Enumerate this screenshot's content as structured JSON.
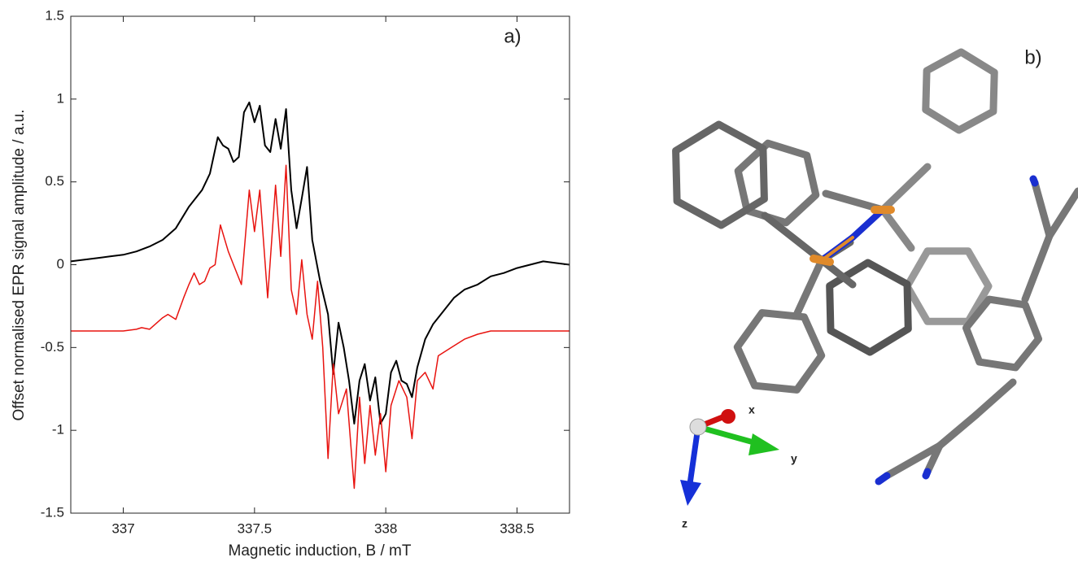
{
  "chart_data": {
    "type": "line",
    "ylabel": "Offset normalised EPR signal amplitude / a.u.",
    "xlabel": "Magnetic induction, B / mT",
    "annotation": "a)",
    "xlim": [
      336.8,
      338.7
    ],
    "xticks": [
      337,
      337.5,
      338,
      338.5
    ],
    "ylim": [
      -1.5,
      1.5
    ],
    "yticks": [
      -1.5,
      -1,
      -0.5,
      0,
      0.5,
      1,
      1.5
    ],
    "series": [
      {
        "color": "#000000",
        "x": [
          336.8,
          336.85,
          336.9,
          336.95,
          337.0,
          337.05,
          337.1,
          337.15,
          337.2,
          337.25,
          337.3,
          337.33,
          337.36,
          337.38,
          337.4,
          337.42,
          337.44,
          337.46,
          337.48,
          337.5,
          337.52,
          337.54,
          337.56,
          337.58,
          337.6,
          337.62,
          337.64,
          337.66,
          337.68,
          337.7,
          337.72,
          337.75,
          337.78,
          337.8,
          337.82,
          337.84,
          337.86,
          337.88,
          337.9,
          337.92,
          337.94,
          337.96,
          337.98,
          338.0,
          338.02,
          338.04,
          338.06,
          338.08,
          338.1,
          338.12,
          338.15,
          338.18,
          338.22,
          338.26,
          338.3,
          338.35,
          338.4,
          338.45,
          338.5,
          338.55,
          338.6,
          338.65,
          338.7
        ],
        "values": [
          0.02,
          0.03,
          0.04,
          0.05,
          0.06,
          0.08,
          0.11,
          0.15,
          0.22,
          0.35,
          0.45,
          0.55,
          0.77,
          0.72,
          0.7,
          0.62,
          0.65,
          0.92,
          0.98,
          0.86,
          0.96,
          0.72,
          0.68,
          0.88,
          0.7,
          0.94,
          0.45,
          0.22,
          0.4,
          0.59,
          0.15,
          -0.1,
          -0.3,
          -0.66,
          -0.35,
          -0.5,
          -0.7,
          -0.96,
          -0.7,
          -0.6,
          -0.82,
          -0.68,
          -0.96,
          -0.9,
          -0.65,
          -0.58,
          -0.7,
          -0.72,
          -0.8,
          -0.62,
          -0.45,
          -0.36,
          -0.28,
          -0.2,
          -0.15,
          -0.12,
          -0.07,
          -0.05,
          -0.02,
          0.0,
          0.02,
          0.01,
          0.0
        ]
      },
      {
        "color": "#e8130f",
        "x": [
          336.8,
          337.0,
          337.05,
          337.07,
          337.1,
          337.15,
          337.17,
          337.2,
          337.23,
          337.25,
          337.27,
          337.29,
          337.31,
          337.33,
          337.35,
          337.37,
          337.4,
          337.42,
          337.45,
          337.48,
          337.5,
          337.52,
          337.55,
          337.58,
          337.6,
          337.62,
          337.64,
          337.66,
          337.68,
          337.7,
          337.72,
          337.74,
          337.76,
          337.78,
          337.8,
          337.82,
          337.85,
          337.88,
          337.9,
          337.92,
          337.94,
          337.96,
          337.98,
          338.0,
          338.02,
          338.05,
          338.08,
          338.1,
          338.12,
          338.15,
          338.18,
          338.2,
          338.25,
          338.3,
          338.35,
          338.4,
          338.7
        ],
        "values": [
          -0.4,
          -0.4,
          -0.39,
          -0.38,
          -0.39,
          -0.32,
          -0.3,
          -0.33,
          -0.2,
          -0.12,
          -0.05,
          -0.12,
          -0.1,
          -0.02,
          0.0,
          0.24,
          0.08,
          0.0,
          -0.12,
          0.45,
          0.2,
          0.45,
          -0.2,
          0.48,
          0.05,
          0.6,
          -0.15,
          -0.3,
          0.03,
          -0.3,
          -0.45,
          -0.1,
          -0.5,
          -1.17,
          -0.6,
          -0.9,
          -0.75,
          -1.35,
          -0.8,
          -1.2,
          -0.85,
          -1.15,
          -0.9,
          -1.25,
          -0.85,
          -0.7,
          -0.8,
          -1.05,
          -0.7,
          -0.65,
          -0.75,
          -0.55,
          -0.5,
          -0.45,
          -0.42,
          -0.4,
          -0.4
        ]
      }
    ]
  },
  "panel_b": {
    "label": "b)",
    "axes": [
      "x",
      "y",
      "z"
    ]
  }
}
